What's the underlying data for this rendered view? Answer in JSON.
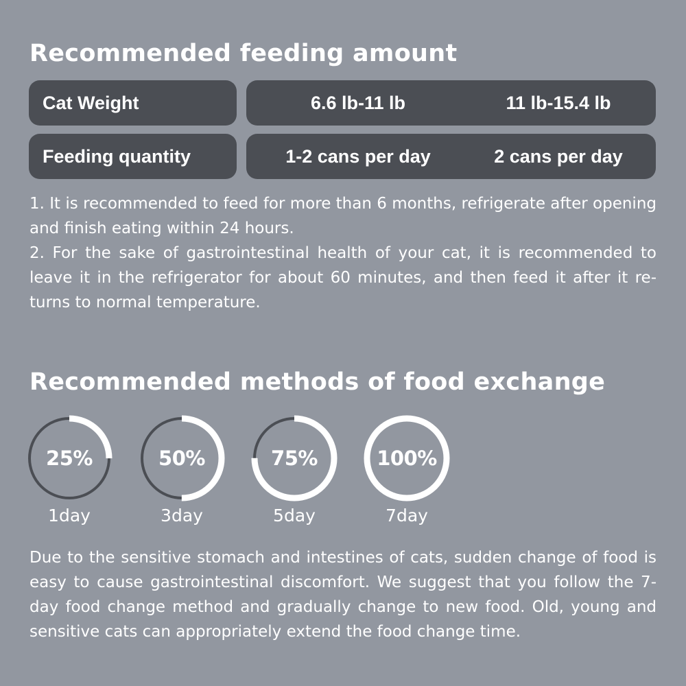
{
  "feeding": {
    "title": "Recommended feeding amount",
    "rows": [
      {
        "label": "Cat Weight",
        "values": [
          "6.6 lb-11 lb",
          "11 lb-15.4 lb"
        ]
      },
      {
        "label": "Feeding quantity",
        "values": [
          "1-2 cans per day",
          "2 cans per day"
        ]
      }
    ],
    "notes": [
      "1. It is recommended to feed for more than 6 months, refrigerate after opening and finish eating within 24 hours.",
      "2. For the sake of gastrointestinal health of your cat, it is recommended to leave it in the refrigerator for about 60 minutes, and then feed it after it re-turns to normal temperature."
    ]
  },
  "exchange": {
    "title": "Recommended methods of food exchange",
    "steps": [
      {
        "percent_label": "25%",
        "fraction": 0.25,
        "day": "1day"
      },
      {
        "percent_label": "50%",
        "fraction": 0.5,
        "day": "3day"
      },
      {
        "percent_label": "75%",
        "fraction": 0.75,
        "day": "5day"
      },
      {
        "percent_label": "100%",
        "fraction": 1.0,
        "day": "7day"
      }
    ],
    "description": "Due to the sensitive stomach and intestines of cats, sudden change of food is easy to cause gastrointestinal discomfort. We suggest that you follow the 7-day food change method and gradually change to new food. Old, young and sensitive cats can appropriately extend the food change time."
  },
  "colors": {
    "background": "#9297a0",
    "pill": "#4b4e54",
    "ring_track": "#4b4e54",
    "ring_fill": "#ffffff"
  }
}
